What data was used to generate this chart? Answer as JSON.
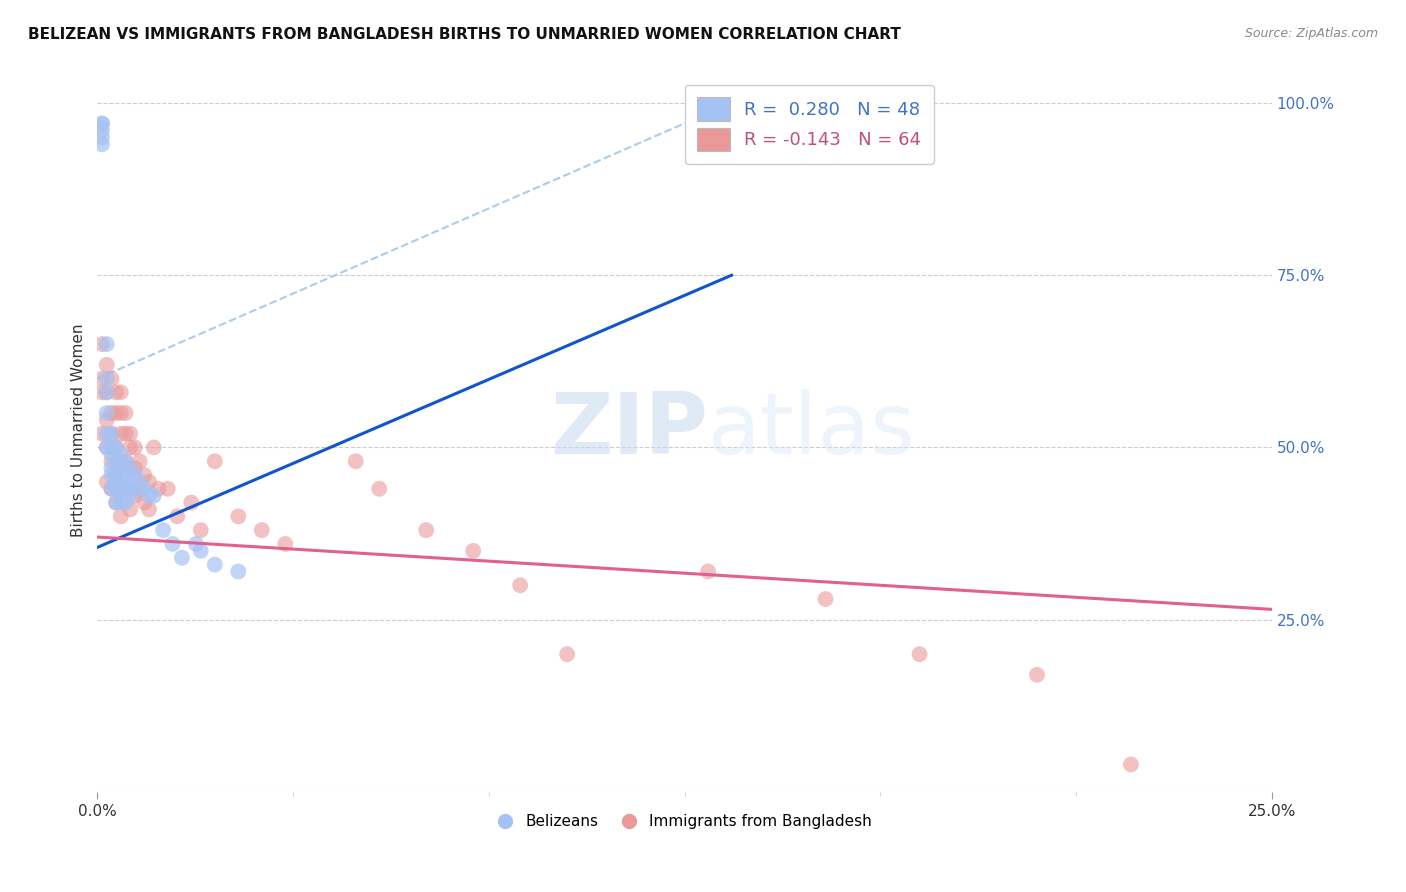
{
  "title": "BELIZEAN VS IMMIGRANTS FROM BANGLADESH BIRTHS TO UNMARRIED WOMEN CORRELATION CHART",
  "source": "Source: ZipAtlas.com",
  "ylabel": "Births to Unmarried Women",
  "right_yticks": [
    0.25,
    0.5,
    0.75,
    1.0
  ],
  "right_yticklabels": [
    "25.0%",
    "50.0%",
    "75.0%",
    "100.0%"
  ],
  "xmin": 0.0,
  "xmax": 0.25,
  "ymin": 0.0,
  "ymax": 1.05,
  "watermark_zip": "ZIP",
  "watermark_atlas": "atlas",
  "blue_color": "#a4c2f4",
  "pink_color": "#ea9999",
  "blue_line_color": "#1155cc",
  "pink_line_color": "#e06090",
  "blue_scatter": {
    "x": [
      0.001,
      0.001,
      0.001,
      0.001,
      0.001,
      0.002,
      0.002,
      0.002,
      0.002,
      0.002,
      0.002,
      0.003,
      0.003,
      0.003,
      0.003,
      0.003,
      0.003,
      0.004,
      0.004,
      0.004,
      0.004,
      0.004,
      0.004,
      0.005,
      0.005,
      0.005,
      0.005,
      0.005,
      0.006,
      0.006,
      0.006,
      0.006,
      0.007,
      0.007,
      0.007,
      0.008,
      0.008,
      0.009,
      0.01,
      0.011,
      0.012,
      0.014,
      0.016,
      0.018,
      0.021,
      0.022,
      0.025,
      0.03
    ],
    "y": [
      0.97,
      0.97,
      0.96,
      0.95,
      0.94,
      0.65,
      0.6,
      0.58,
      0.55,
      0.52,
      0.5,
      0.52,
      0.5,
      0.49,
      0.47,
      0.46,
      0.44,
      0.5,
      0.48,
      0.46,
      0.45,
      0.44,
      0.42,
      0.49,
      0.47,
      0.45,
      0.44,
      0.42,
      0.48,
      0.46,
      0.44,
      0.42,
      0.47,
      0.45,
      0.43,
      0.46,
      0.44,
      0.45,
      0.44,
      0.43,
      0.43,
      0.38,
      0.36,
      0.34,
      0.36,
      0.35,
      0.33,
      0.32
    ]
  },
  "pink_scatter": {
    "x": [
      0.001,
      0.001,
      0.001,
      0.001,
      0.002,
      0.002,
      0.002,
      0.002,
      0.002,
      0.003,
      0.003,
      0.003,
      0.003,
      0.003,
      0.004,
      0.004,
      0.004,
      0.004,
      0.004,
      0.005,
      0.005,
      0.005,
      0.005,
      0.005,
      0.005,
      0.006,
      0.006,
      0.006,
      0.006,
      0.007,
      0.007,
      0.007,
      0.007,
      0.007,
      0.008,
      0.008,
      0.008,
      0.009,
      0.009,
      0.01,
      0.01,
      0.011,
      0.011,
      0.012,
      0.013,
      0.015,
      0.017,
      0.02,
      0.022,
      0.025,
      0.03,
      0.035,
      0.04,
      0.055,
      0.06,
      0.07,
      0.08,
      0.09,
      0.1,
      0.13,
      0.155,
      0.175,
      0.2,
      0.22
    ],
    "y": [
      0.65,
      0.6,
      0.58,
      0.52,
      0.62,
      0.58,
      0.54,
      0.5,
      0.45,
      0.6,
      0.55,
      0.52,
      0.48,
      0.44,
      0.58,
      0.55,
      0.5,
      0.46,
      0.42,
      0.58,
      0.55,
      0.52,
      0.48,
      0.44,
      0.4,
      0.55,
      0.52,
      0.48,
      0.44,
      0.52,
      0.5,
      0.47,
      0.44,
      0.41,
      0.5,
      0.47,
      0.43,
      0.48,
      0.44,
      0.46,
      0.42,
      0.45,
      0.41,
      0.5,
      0.44,
      0.44,
      0.4,
      0.42,
      0.38,
      0.48,
      0.4,
      0.38,
      0.36,
      0.48,
      0.44,
      0.38,
      0.35,
      0.3,
      0.2,
      0.32,
      0.28,
      0.2,
      0.17,
      0.04
    ]
  },
  "blue_line": {
    "x0": 0.0,
    "x1": 0.135,
    "y0": 0.355,
    "y1": 0.75
  },
  "pink_line": {
    "x0": 0.0,
    "x1": 0.25,
    "y0": 0.37,
    "y1": 0.265
  },
  "dashed_line": {
    "x0": 0.0,
    "x1": 0.135,
    "y0": 0.6,
    "y1": 1.0
  },
  "xtick_positions": [
    0.0,
    0.25
  ],
  "xtick_labels": [
    "0.0%",
    "25.0%"
  ]
}
